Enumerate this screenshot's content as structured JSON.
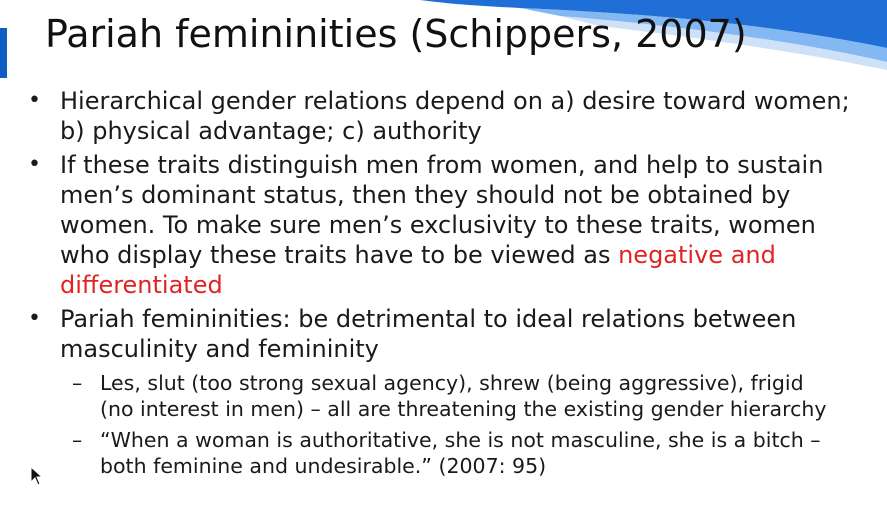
{
  "slide": {
    "title": "Pariah femininities (Schippers, 2007)",
    "bullets": [
      {
        "lines": [
          "Hierarchical gender relations depend on a) desire toward women;",
          "b) physical advantage; c) authority"
        ]
      },
      {
        "lines": [
          "If these traits distinguish men from women, and help to sustain",
          "men’s dominant status, then they should not be obtained by",
          "women. To make sure men’s exclusivity to these traits, women",
          "who display these traits have to be viewed as "
        ],
        "highlight_1": "negative and",
        "highlight_2": "differentiated"
      },
      {
        "lines": [
          "Pariah femininities: be detrimental to ideal relations between",
          "masculinity and femininity"
        ],
        "sub": [
          {
            "lines": [
              "Les, slut (too strong sexual agency), shrew (being aggressive), frigid",
              "(no interest in men) – all are threatening the existing gender hierarchy"
            ]
          },
          {
            "lines": [
              "“When a woman is authoritative, she is not masculine, she is a bitch –",
              "both feminine and undesirable.” (2007: 95)"
            ]
          }
        ]
      }
    ],
    "bullet_symbol": "•",
    "dash_symbol": "–",
    "colors": {
      "accent_blue": "#0f5fc2",
      "highlight_red": "#e02424",
      "text": "#1a1a1a"
    }
  }
}
